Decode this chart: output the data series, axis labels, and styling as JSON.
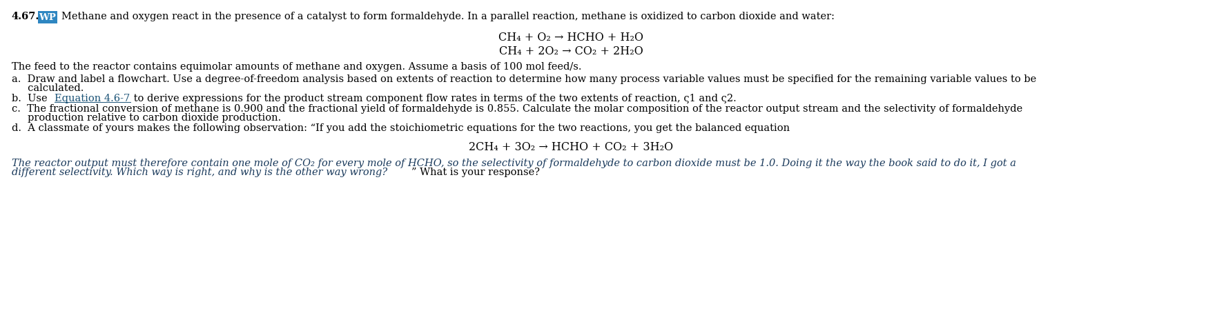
{
  "bg_color": "#ffffff",
  "number_label": "4.67.",
  "wp_label": "WP",
  "wp_bg": "#2e86c1",
  "wp_text_color": "#ffffff",
  "header_text": "Methane and oxygen react in the presence of a catalyst to form formaldehyde. In a parallel reaction, methane is oxidized to carbon dioxide and water:",
  "eq1": "CH₄ + O₂ → HCHO + H₂O",
  "eq2": "CH₄ + 2O₂ → CO₂ + 2H₂O",
  "feed_text": "The feed to the reactor contains equimolar amounts of methane and oxygen. Assume a basis of 100 mol feed/s.",
  "part_a_line1": "a.  Draw and label a flowchart. Use a degree-of-freedom analysis based on extents of reaction to determine how many process variable values must be specified for the remaining variable values to be",
  "part_a_line2": "     calculated.",
  "part_b_prefix": "b.  Use ",
  "part_b_link": "Equation 4.6-7",
  "part_b_suffix": " to derive expressions for the product stream component flow rates in terms of the two extents of reaction, ς1 and ς2.",
  "part_c_line1": "c.  The fractional conversion of methane is 0.900 and the fractional yield of formaldehyde is 0.855. Calculate the molar composition of the reactor output stream and the selectivity of formaldehyde",
  "part_c_line2": "     production relative to carbon dioxide production.",
  "part_d_intro": "d.  A classmate of yours makes the following observation: “If you add the stoichiometric equations for the two reactions, you get the balanced equation",
  "eq3": "2CH₄ + 3O₂ → HCHO + CO₂ + 3H₂O",
  "part_d_italic": "The reactor output must therefore contain one mole of CO₂ for every mole of HCHO, so the selectivity of formaldehyde to carbon dioxide must be 1.0. Doing it the way the book said to do it, I got a",
  "part_d_italic2": "different selectivity. Which way is right, and why is the other way wrong?",
  "part_d_normal": "” What is your response?",
  "text_color": "#000000",
  "link_color": "#1a5276",
  "italic_color": "#1a3a5c",
  "fontsize_main": 10.5,
  "fontsize_eq": 11.5
}
